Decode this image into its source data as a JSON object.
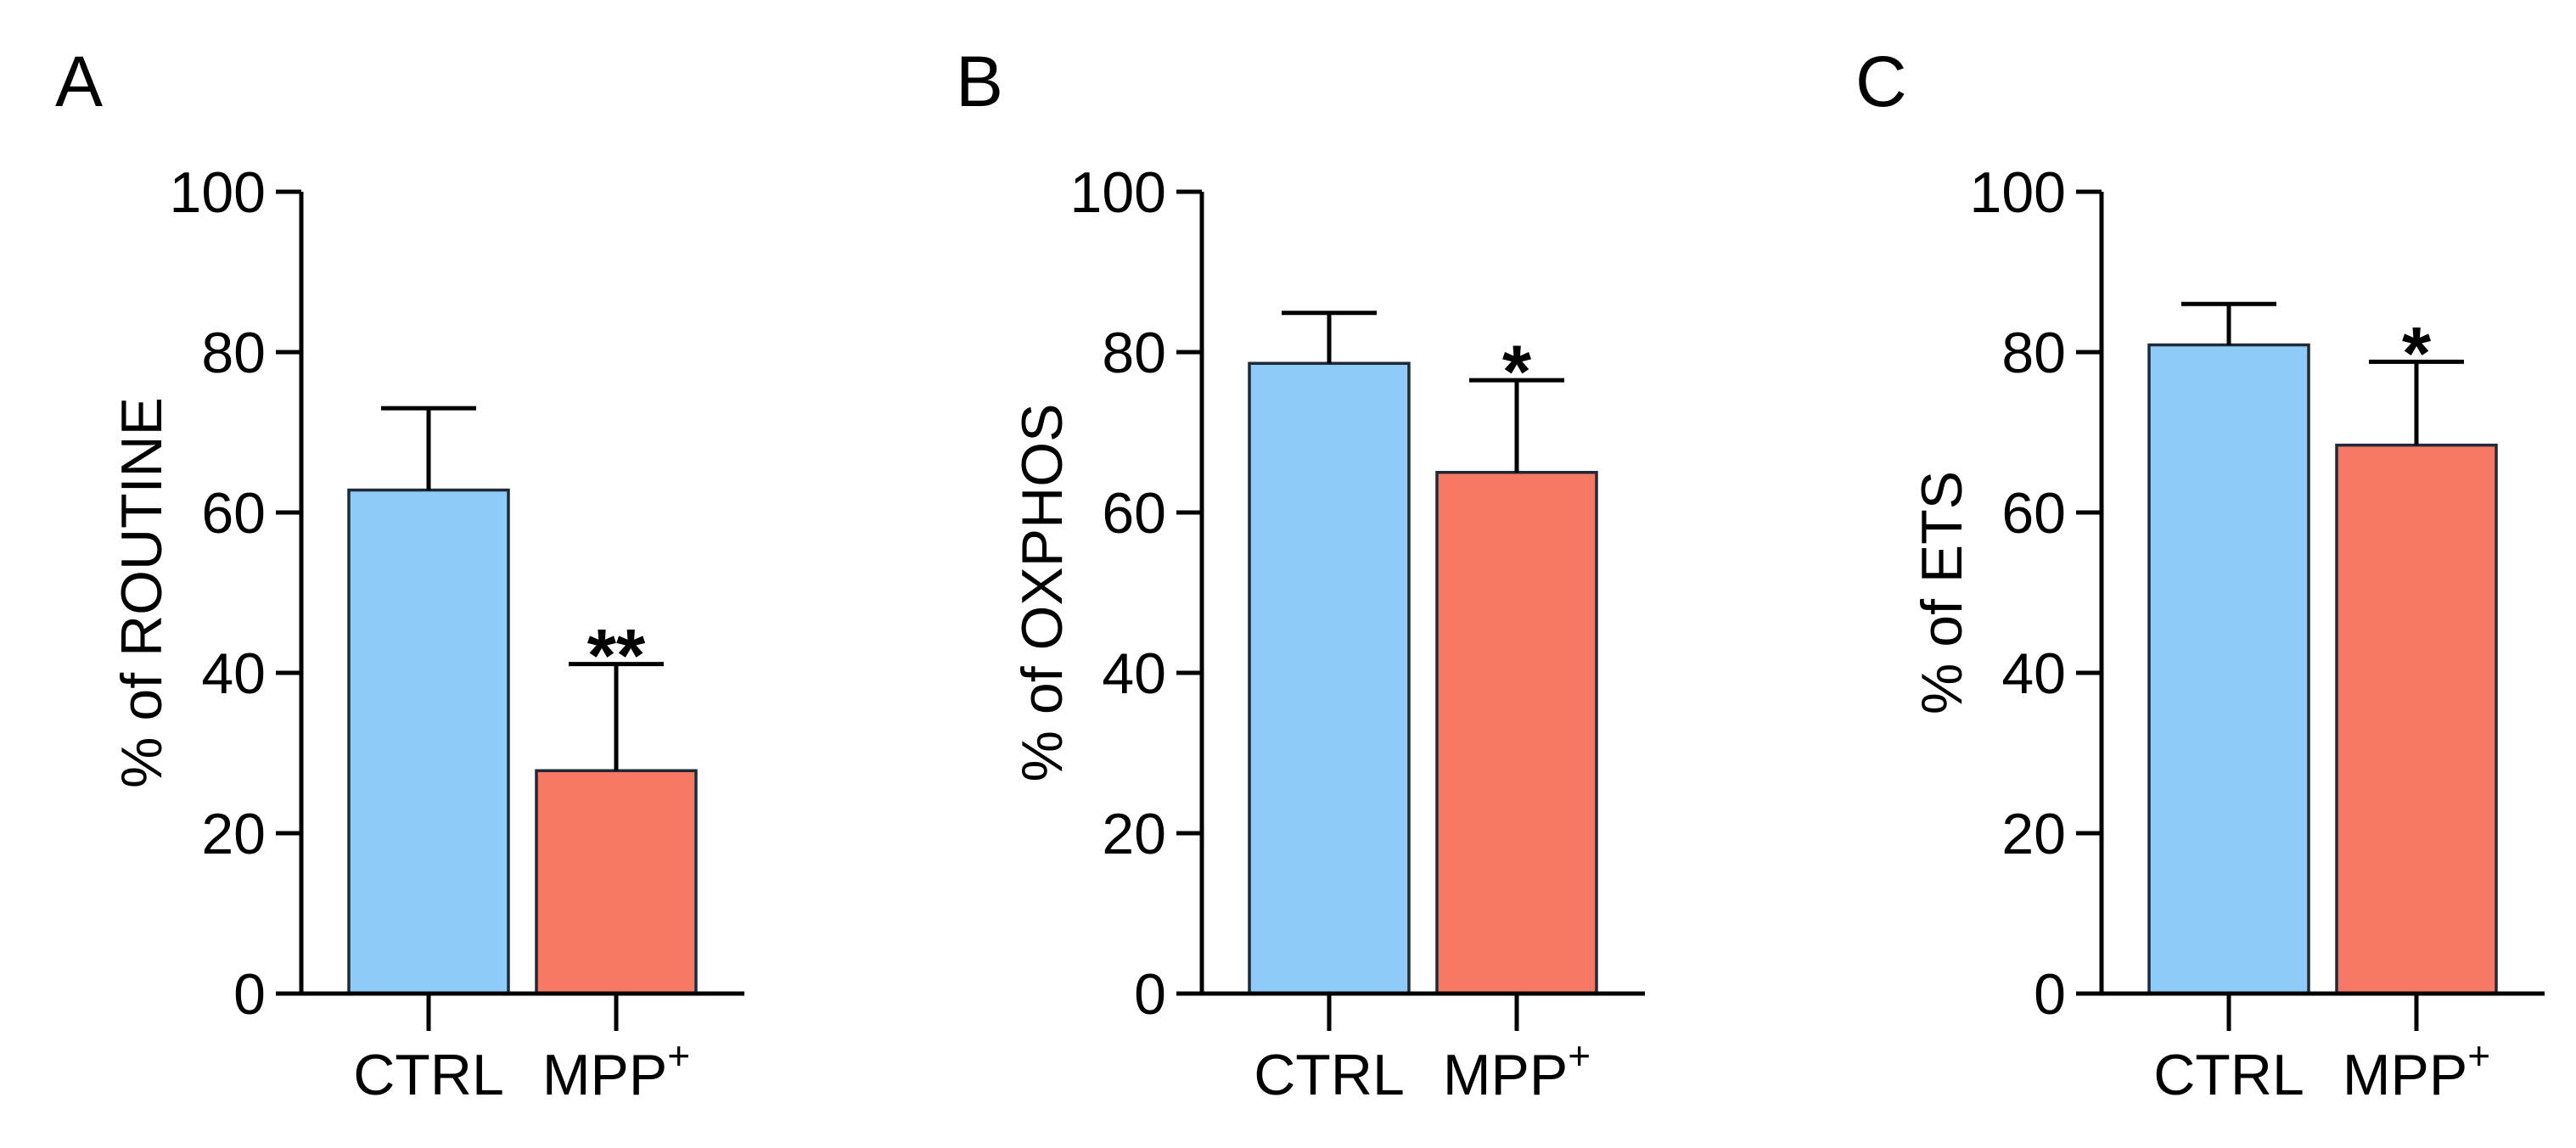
{
  "chart_data": [
    {
      "panel": "A",
      "type": "bar",
      "ylabel": "% of ROUTINE",
      "ylim": [
        0,
        100
      ],
      "yticks": [
        "0",
        "20",
        "40",
        "60",
        "80",
        "100"
      ],
      "ytick_values": [
        0,
        20,
        40,
        60,
        80,
        100
      ],
      "categories": [
        {
          "label": "CTRL",
          "sup": ""
        },
        {
          "label": "MPP",
          "sup": "+"
        }
      ],
      "values": [
        62.8,
        27.8
      ],
      "errors": [
        10.2,
        13.3
      ],
      "significance": [
        "",
        "**"
      ],
      "colors": [
        "#8ecbf8",
        "#f67865"
      ]
    },
    {
      "panel": "B",
      "type": "bar",
      "ylabel": "% of OXPHOS",
      "ylim": [
        0,
        100
      ],
      "yticks": [
        "0",
        "20",
        "40",
        "60",
        "80",
        "100"
      ],
      "ytick_values": [
        0,
        20,
        40,
        60,
        80,
        100
      ],
      "categories": [
        {
          "label": "CTRL",
          "sup": ""
        },
        {
          "label": "MPP",
          "sup": "+"
        }
      ],
      "values": [
        78.6,
        65.0
      ],
      "errors": [
        6.3,
        11.5
      ],
      "significance": [
        "",
        "*"
      ],
      "colors": [
        "#8ecbf8",
        "#f67865"
      ]
    },
    {
      "panel": "C",
      "type": "bar",
      "ylabel": "% of ETS",
      "ylim": [
        0,
        100
      ],
      "yticks": [
        "0",
        "20",
        "40",
        "60",
        "80",
        "100"
      ],
      "ytick_values": [
        0,
        20,
        40,
        60,
        80,
        100
      ],
      "categories": [
        {
          "label": "CTRL",
          "sup": ""
        },
        {
          "label": "MPP",
          "sup": "+"
        }
      ],
      "values": [
        80.9,
        68.4
      ],
      "errors": [
        5.1,
        10.4
      ],
      "significance": [
        "",
        "*"
      ],
      "colors": [
        "#8ecbf8",
        "#f67865"
      ]
    }
  ]
}
